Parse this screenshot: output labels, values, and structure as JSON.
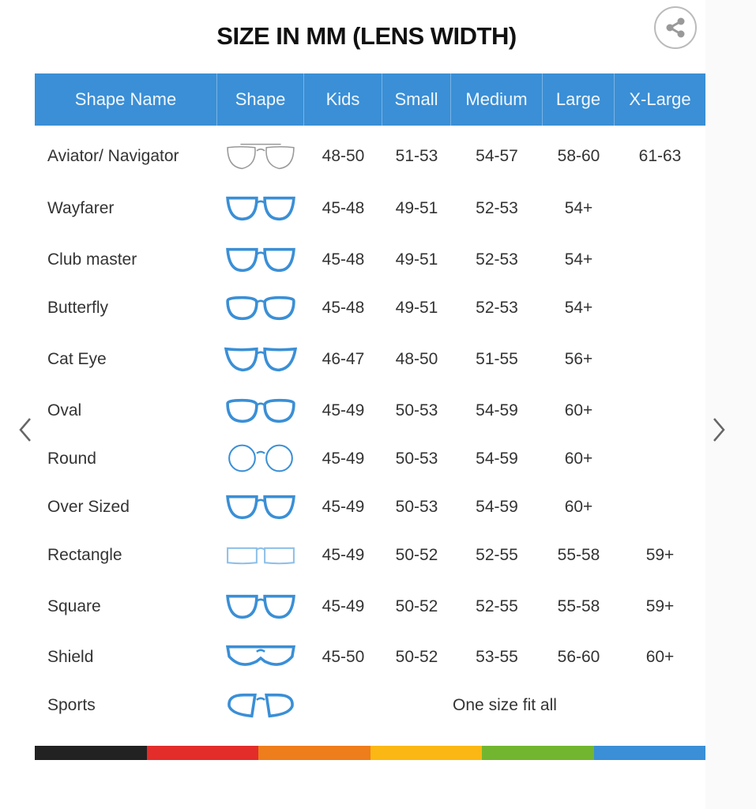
{
  "title": "SIZE IN MM (LENS WIDTH)",
  "share_icon": "share-icon",
  "nav": {
    "prev_icon": "chevron-left-icon",
    "next_icon": "chevron-right-icon"
  },
  "columns": [
    "Shape Name",
    "Shape",
    "Kids",
    "Small",
    "Medium",
    "Large",
    "X-Large"
  ],
  "accent_color": "#3a8fd6",
  "rows": [
    {
      "name": "Aviator/ Navigator",
      "icon": "aviator",
      "color": "#999999",
      "sizes": [
        "48-50",
        "51-53",
        "54-57",
        "58-60",
        "61-63"
      ]
    },
    {
      "name": "Wayfarer",
      "icon": "wayfarer",
      "color": "#3a8fd6",
      "sizes": [
        "45-48",
        "49-51",
        "52-53",
        "54+",
        ""
      ]
    },
    {
      "name": "Club master",
      "icon": "clubmaster",
      "color": "#3a8fd6",
      "sizes": [
        "45-48",
        "49-51",
        "52-53",
        "54+",
        ""
      ]
    },
    {
      "name": "Butterfly",
      "icon": "butterfly",
      "color": "#3a8fd6",
      "sizes": [
        "45-48",
        "49-51",
        "52-53",
        "54+",
        ""
      ]
    },
    {
      "name": "Cat Eye",
      "icon": "cateye",
      "color": "#3a8fd6",
      "sizes": [
        "46-47",
        "48-50",
        "51-55",
        "56+",
        ""
      ]
    },
    {
      "name": "Oval",
      "icon": "oval",
      "color": "#3a8fd6",
      "sizes": [
        "45-49",
        "50-53",
        "54-59",
        "60+",
        ""
      ]
    },
    {
      "name": "Round",
      "icon": "round",
      "color": "#3a8fd6",
      "sizes": [
        "45-49",
        "50-53",
        "54-59",
        "60+",
        ""
      ]
    },
    {
      "name": "Over Sized",
      "icon": "oversized",
      "color": "#3a8fd6",
      "sizes": [
        "45-49",
        "50-53",
        "54-59",
        "60+",
        ""
      ]
    },
    {
      "name": "Rectangle",
      "icon": "rectangle",
      "color": "#8fc0e8",
      "sizes": [
        "45-49",
        "50-52",
        "52-55",
        "55-58",
        "59+"
      ]
    },
    {
      "name": "Square",
      "icon": "square",
      "color": "#3a8fd6",
      "sizes": [
        "45-49",
        "50-52",
        "52-55",
        "55-58",
        "59+"
      ]
    },
    {
      "name": "Shield",
      "icon": "shield",
      "color": "#3a8fd6",
      "sizes": [
        "45-50",
        "50-52",
        "53-55",
        "56-60",
        "60+"
      ]
    },
    {
      "name": "Sports",
      "icon": "sports",
      "color": "#3a8fd6",
      "note": "One size fit all"
    }
  ],
  "color_bar": [
    "#222222",
    "#e22d2a",
    "#ee7d1c",
    "#fbb713",
    "#72b62f",
    "#3a8fd6"
  ]
}
